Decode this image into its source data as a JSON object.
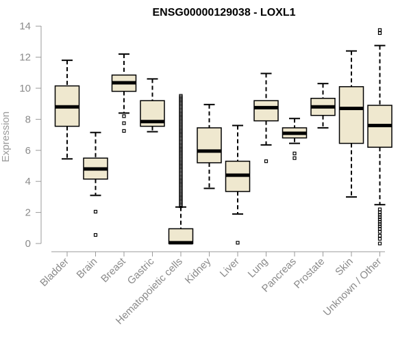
{
  "chart_data": {
    "type": "box",
    "title": "ENSG00000129038 - LOXL1",
    "ylabel": "Expression",
    "xlabel": "",
    "ylim": [
      0,
      14
    ],
    "yticks": [
      0,
      2,
      4,
      6,
      8,
      10,
      12,
      14
    ],
    "colors": {
      "box_fill": "#efe8cf",
      "box_stroke": "#000000",
      "median": "#000000",
      "axis": "#9a9a9a"
    },
    "categories": [
      "Bladder",
      "Brain",
      "Breast",
      "Gastric",
      "Hematopoietic cells",
      "Kidney",
      "Liver",
      "Lung",
      "Pancreas",
      "Prostate",
      "Skin",
      "Unknown / Other"
    ],
    "boxes": [
      {
        "name": "Bladder",
        "whisker_low": 5.45,
        "q1": 7.55,
        "median": 8.8,
        "q3": 10.15,
        "whisker_high": 11.8,
        "outliers": []
      },
      {
        "name": "Brain",
        "whisker_low": 3.1,
        "q1": 4.15,
        "median": 4.8,
        "q3": 5.5,
        "whisker_high": 7.15,
        "outliers": [
          2.05,
          0.55
        ]
      },
      {
        "name": "Breast",
        "whisker_low": 8.4,
        "q1": 9.8,
        "median": 10.35,
        "q3": 10.85,
        "whisker_high": 12.2,
        "outliers": [
          8.2,
          7.75,
          7.25
        ]
      },
      {
        "name": "Gastric",
        "whisker_low": 7.2,
        "q1": 7.55,
        "median": 7.85,
        "q3": 9.2,
        "whisker_high": 10.6,
        "outliers": []
      },
      {
        "name": "Hematopoietic cells",
        "whisker_low": 0,
        "q1": 0,
        "median": 0.05,
        "q3": 0.95,
        "whisker_high": 2.35,
        "outlier_range": [
          2.4,
          9.55
        ],
        "outliers": []
      },
      {
        "name": "Kidney",
        "whisker_low": 3.55,
        "q1": 5.2,
        "median": 5.95,
        "q3": 7.45,
        "whisker_high": 8.95,
        "outliers": []
      },
      {
        "name": "Liver",
        "whisker_low": 1.9,
        "q1": 3.35,
        "median": 4.4,
        "q3": 5.3,
        "whisker_high": 7.6,
        "outliers": [
          0.05
        ]
      },
      {
        "name": "Lung",
        "whisker_low": 6.35,
        "q1": 7.9,
        "median": 8.75,
        "q3": 9.2,
        "whisker_high": 10.95,
        "outliers": [
          5.3
        ]
      },
      {
        "name": "Pancreas",
        "whisker_low": 6.45,
        "q1": 6.8,
        "median": 7.1,
        "q3": 7.45,
        "whisker_high": 8.05,
        "outliers": [
          5.8,
          5.5
        ]
      },
      {
        "name": "Prostate",
        "whisker_low": 7.45,
        "q1": 8.25,
        "median": 8.8,
        "q3": 9.35,
        "whisker_high": 10.3,
        "outliers": []
      },
      {
        "name": "Skin",
        "whisker_low": 3.0,
        "q1": 6.45,
        "median": 8.7,
        "q3": 10.1,
        "whisker_high": 12.4,
        "outliers": []
      },
      {
        "name": "Unknown / Other",
        "whisker_low": 2.5,
        "q1": 6.2,
        "median": 7.6,
        "q3": 8.9,
        "whisker_high": 12.75,
        "outliers": [
          13.75,
          13.55,
          2.2,
          2.0,
          1.85,
          1.7,
          1.55,
          1.4,
          1.25,
          1.1,
          0.95,
          0.75,
          0.5,
          0.3,
          0.0
        ]
      }
    ]
  }
}
